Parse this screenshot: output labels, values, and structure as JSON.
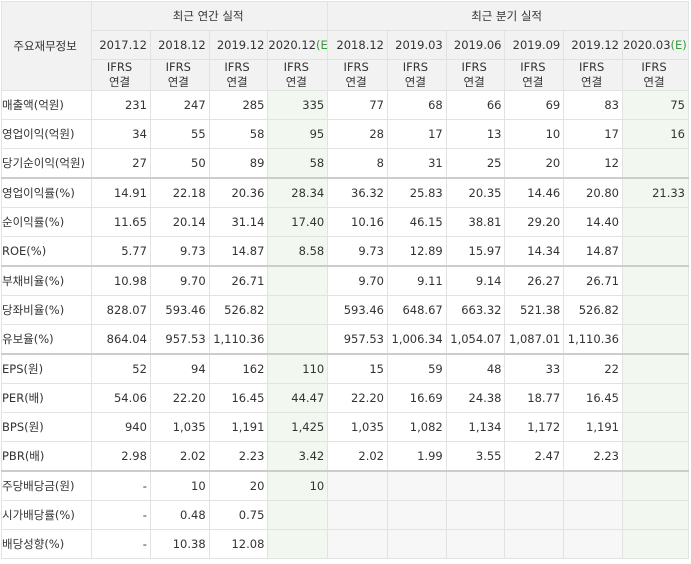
{
  "table": {
    "corner_label": "주요재무정보",
    "annual_group": "최근 연간 실적",
    "quarterly_group": "최근 분기 실적",
    "annual_periods": [
      "2017.12",
      "2018.12",
      "2019.12",
      "2020.12"
    ],
    "quarterly_periods": [
      "2018.12",
      "2019.03",
      "2019.06",
      "2019.09",
      "2019.12",
      "2020.03"
    ],
    "estimate_mark": "(E)",
    "ifrs_line1": "IFRS",
    "ifrs_line2": "연결",
    "rows": [
      {
        "label": "매출액(억원)",
        "values": [
          "231",
          "247",
          "285",
          "335",
          "77",
          "68",
          "66",
          "69",
          "83",
          "75"
        ]
      },
      {
        "label": "영업이익(억원)",
        "values": [
          "34",
          "55",
          "58",
          "95",
          "28",
          "17",
          "13",
          "10",
          "17",
          "16"
        ]
      },
      {
        "label": "당기순이익(억원)",
        "values": [
          "27",
          "50",
          "89",
          "58",
          "8",
          "31",
          "25",
          "20",
          "12",
          ""
        ]
      },
      {
        "label": "영업이익률(%)",
        "values": [
          "14.91",
          "22.18",
          "20.36",
          "28.34",
          "36.32",
          "25.83",
          "20.35",
          "14.46",
          "20.80",
          "21.33"
        ]
      },
      {
        "label": "순이익률(%)",
        "values": [
          "11.65",
          "20.14",
          "31.14",
          "17.40",
          "10.16",
          "46.15",
          "38.81",
          "29.20",
          "14.40",
          ""
        ]
      },
      {
        "label": "ROE(%)",
        "values": [
          "5.77",
          "9.73",
          "14.87",
          "8.58",
          "9.73",
          "12.89",
          "15.97",
          "14.34",
          "14.87",
          ""
        ]
      },
      {
        "label": "부채비율(%)",
        "values": [
          "10.98",
          "9.70",
          "26.71",
          "",
          "9.70",
          "9.11",
          "9.14",
          "26.27",
          "26.71",
          ""
        ]
      },
      {
        "label": "당좌비율(%)",
        "values": [
          "828.07",
          "593.46",
          "526.82",
          "",
          "593.46",
          "648.67",
          "663.32",
          "521.38",
          "526.82",
          ""
        ]
      },
      {
        "label": "유보율(%)",
        "values": [
          "864.04",
          "957.53",
          "1,110.36",
          "",
          "957.53",
          "1,006.34",
          "1,054.07",
          "1,087.01",
          "1,110.36",
          ""
        ]
      },
      {
        "label": "EPS(원)",
        "values": [
          "52",
          "94",
          "162",
          "110",
          "15",
          "59",
          "48",
          "33",
          "22",
          ""
        ]
      },
      {
        "label": "PER(배)",
        "values": [
          "54.06",
          "22.20",
          "16.45",
          "44.47",
          "22.20",
          "16.69",
          "24.38",
          "18.77",
          "16.45",
          ""
        ]
      },
      {
        "label": "BPS(원)",
        "values": [
          "940",
          "1,035",
          "1,191",
          "1,425",
          "1,035",
          "1,082",
          "1,134",
          "1,172",
          "1,191",
          ""
        ]
      },
      {
        "label": "PBR(배)",
        "values": [
          "2.98",
          "2.02",
          "2.23",
          "3.42",
          "2.02",
          "1.99",
          "3.55",
          "2.47",
          "2.23",
          ""
        ]
      },
      {
        "label": "주당배당금(원)",
        "values": [
          "-",
          "10",
          "20",
          "10",
          "",
          "",
          "",
          "",
          "",
          ""
        ]
      },
      {
        "label": "시가배당률(%)",
        "values": [
          "-",
          "0.48",
          "0.75",
          "",
          "",
          "",
          "",
          "",
          "",
          ""
        ]
      },
      {
        "label": "배당성향(%)",
        "values": [
          "-",
          "10.38",
          "12.08",
          "",
          "",
          "",
          "",
          "",
          "",
          ""
        ]
      }
    ]
  }
}
